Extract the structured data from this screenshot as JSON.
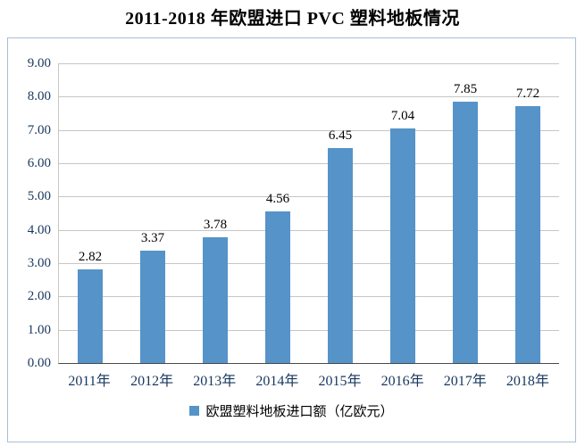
{
  "title": "2011-2018 年欧盟进口 PVC 塑料地板情况",
  "colors": {
    "bar": "#5593C9",
    "axis_label": "#17375E",
    "value_label": "#000000",
    "grid": "#C6C6C6",
    "axis_line": "#4A4A4A",
    "frame_border": "#A9BFD3",
    "title": "#000000",
    "legend_text": "#000000"
  },
  "legend": {
    "label": "欧盟塑料地板进口额（亿欧元）"
  },
  "chart_data": {
    "type": "bar",
    "title": "2011-2018 年欧盟进口 PVC 塑料地板情况",
    "categories": [
      "2011年",
      "2012年",
      "2013年",
      "2014年",
      "2015年",
      "2016年",
      "2017年",
      "2018年"
    ],
    "series": [
      {
        "name": "欧盟塑料地板进口额（亿欧元）",
        "values": [
          2.82,
          3.37,
          3.78,
          4.56,
          6.45,
          7.04,
          7.85,
          7.72
        ]
      }
    ],
    "values": [
      2.82,
      3.37,
      3.78,
      4.56,
      6.45,
      7.04,
      7.85,
      7.72
    ],
    "xlabel": "",
    "ylabel": "",
    "ylim": [
      0,
      9
    ],
    "ytick_step": 1,
    "ytick_format": "0.00",
    "grid": true,
    "legend_position": "bottom",
    "data_labels": true
  }
}
